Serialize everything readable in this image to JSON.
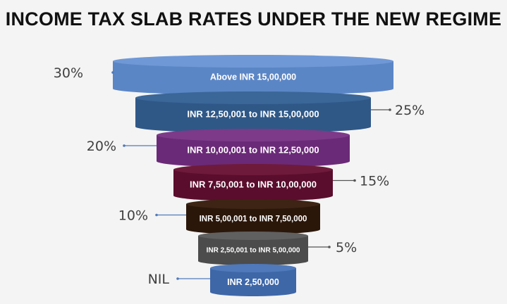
{
  "title": "INCOME TAX SLAB RATES UNDER THE NEW REGIME",
  "slabs": [
    {
      "range": "Above INR 15,00,000",
      "rate": "30%",
      "color": "#5b86c6",
      "top_color": "#6f98d6",
      "side": "left"
    },
    {
      "range": "INR 12,50,001 to INR 15,00,000",
      "rate": "25%",
      "color": "#2f5887",
      "top_color": "#3a6698",
      "side": "right"
    },
    {
      "range": "INR 10,00,001 to INR 12,50,000",
      "rate": "20%",
      "color": "#6b2a78",
      "top_color": "#7c3a89",
      "side": "left"
    },
    {
      "range": "INR 7,50,001 to INR 10,00,000",
      "rate": "15%",
      "color": "#5a0d2c",
      "top_color": "#6e1a3a",
      "side": "right"
    },
    {
      "range": "INR 5,00,001 to INR 7,50,000",
      "rate": "10%",
      "color": "#2b170a",
      "top_color": "#3d2414",
      "side": "left"
    },
    {
      "range": "INR 2,50,001 to INR 5,00,000",
      "rate": "5%",
      "color": "#4c4c4c",
      "top_color": "#606060",
      "side": "right"
    },
    {
      "range": "INR 2,50,000",
      "rate": "NIL",
      "color": "#3e67a8",
      "top_color": "#4f79ba",
      "side": "left"
    }
  ]
}
